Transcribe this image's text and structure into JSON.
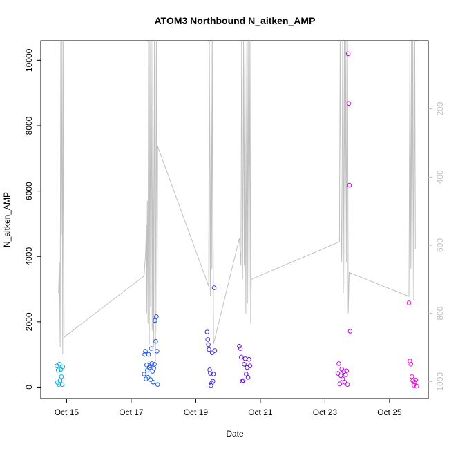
{
  "chart_data": {
    "type": "scatter",
    "title": "ATOM3 Northbound N_aitken_AMP",
    "xlabel": "Date",
    "ylabel": "N_aitken_AMP",
    "x_ticks": [
      "Oct 15",
      "Oct 17",
      "Oct 19",
      "Oct 21",
      "Oct 23",
      "Oct 25"
    ],
    "x_tick_days": [
      15,
      17,
      19,
      21,
      23,
      25
    ],
    "xlim_days": [
      14.2,
      26.2
    ],
    "ylim": [
      -350,
      10600
    ],
    "y_ticks": [
      0,
      2000,
      4000,
      6000,
      8000,
      10000
    ],
    "y2_ticks": [
      200,
      400,
      600,
      800,
      1000
    ],
    "y2lim": [
      0,
      1050
    ],
    "grid": false,
    "colors": {
      "axis": "#000000",
      "secondary_axis": "#bebebe",
      "line": "#c0c0c0"
    },
    "line_series_y2": [
      [
        14.75,
        740
      ],
      [
        14.78,
        650
      ],
      [
        14.8,
        900
      ],
      [
        14.82,
        0
      ],
      [
        14.84,
        570
      ],
      [
        14.86,
        0
      ],
      [
        14.88,
        920
      ],
      [
        14.9,
        0
      ],
      [
        14.92,
        870
      ],
      [
        17.4,
        690
      ],
      [
        17.45,
        620
      ],
      [
        17.47,
        540
      ],
      [
        17.48,
        800
      ],
      [
        17.5,
        470
      ],
      [
        17.52,
        830
      ],
      [
        17.54,
        0
      ],
      [
        17.56,
        890
      ],
      [
        17.58,
        0
      ],
      [
        17.6,
        780
      ],
      [
        17.62,
        0
      ],
      [
        17.65,
        850
      ],
      [
        17.67,
        0
      ],
      [
        17.7,
        900
      ],
      [
        17.72,
        0
      ],
      [
        17.75,
        940
      ],
      [
        17.78,
        0
      ],
      [
        17.8,
        850
      ],
      [
        17.82,
        310
      ],
      [
        19.4,
        720
      ],
      [
        19.42,
        0
      ],
      [
        19.45,
        750
      ],
      [
        19.48,
        0
      ],
      [
        19.5,
        670
      ],
      [
        19.52,
        0
      ],
      [
        19.55,
        890
      ],
      [
        20.35,
        580
      ],
      [
        20.4,
        660
      ],
      [
        20.42,
        0
      ],
      [
        20.45,
        700
      ],
      [
        20.48,
        0
      ],
      [
        20.5,
        660
      ],
      [
        20.52,
        0
      ],
      [
        20.55,
        800
      ],
      [
        20.58,
        0
      ],
      [
        20.6,
        770
      ],
      [
        20.62,
        0
      ],
      [
        20.65,
        810
      ],
      [
        20.68,
        0
      ],
      [
        20.7,
        830
      ],
      [
        20.72,
        700
      ],
      [
        23.45,
        590
      ],
      [
        23.47,
        0
      ],
      [
        23.5,
        520
      ],
      [
        23.52,
        650
      ],
      [
        23.55,
        0
      ],
      [
        23.57,
        740
      ],
      [
        23.6,
        0
      ],
      [
        23.62,
        720
      ],
      [
        23.65,
        0
      ],
      [
        23.67,
        650
      ],
      [
        23.7,
        0
      ],
      [
        23.72,
        800
      ],
      [
        23.75,
        680
      ],
      [
        25.6,
        750
      ],
      [
        25.63,
        0
      ],
      [
        25.66,
        670
      ],
      [
        25.68,
        0
      ],
      [
        25.7,
        750
      ],
      [
        25.72,
        0
      ],
      [
        25.75,
        760
      ],
      [
        25.78,
        0
      ],
      [
        25.8,
        610
      ]
    ],
    "scatter_points": [
      [
        14.7,
        650
      ],
      [
        14.72,
        140
      ],
      [
        14.74,
        520
      ],
      [
        14.76,
        80
      ],
      [
        14.78,
        700
      ],
      [
        14.8,
        200
      ],
      [
        14.82,
        540
      ],
      [
        14.84,
        320
      ],
      [
        14.86,
        80
      ],
      [
        14.88,
        620
      ],
      [
        17.4,
        400
      ],
      [
        17.42,
        1000
      ],
      [
        17.44,
        1100
      ],
      [
        17.46,
        250
      ],
      [
        17.48,
        680
      ],
      [
        17.5,
        520
      ],
      [
        17.52,
        300
      ],
      [
        17.54,
        1000
      ],
      [
        17.56,
        600
      ],
      [
        17.58,
        650
      ],
      [
        17.6,
        230
      ],
      [
        17.62,
        1180
      ],
      [
        17.64,
        720
      ],
      [
        17.66,
        480
      ],
      [
        17.68,
        150
      ],
      [
        17.7,
        580
      ],
      [
        17.72,
        700
      ],
      [
        17.74,
        2040
      ],
      [
        17.76,
        1400
      ],
      [
        17.78,
        2160
      ],
      [
        17.8,
        1100
      ],
      [
        17.82,
        80
      ],
      [
        19.35,
        1690
      ],
      [
        19.37,
        1460
      ],
      [
        19.39,
        1300
      ],
      [
        19.41,
        1150
      ],
      [
        19.43,
        530
      ],
      [
        19.45,
        420
      ],
      [
        19.47,
        50
      ],
      [
        19.49,
        120
      ],
      [
        19.51,
        1050
      ],
      [
        19.53,
        180
      ],
      [
        19.55,
        400
      ],
      [
        19.57,
        3040
      ],
      [
        19.59,
        1120
      ],
      [
        20.35,
        1250
      ],
      [
        20.38,
        1180
      ],
      [
        20.41,
        920
      ],
      [
        20.44,
        180
      ],
      [
        20.47,
        200
      ],
      [
        20.5,
        700
      ],
      [
        20.53,
        870
      ],
      [
        20.56,
        400
      ],
      [
        20.59,
        600
      ],
      [
        20.62,
        300
      ],
      [
        20.65,
        850
      ],
      [
        20.68,
        650
      ],
      [
        23.4,
        420
      ],
      [
        23.43,
        720
      ],
      [
        23.46,
        100
      ],
      [
        23.49,
        350
      ],
      [
        23.52,
        550
      ],
      [
        23.55,
        250
      ],
      [
        23.58,
        480
      ],
      [
        23.61,
        150
      ],
      [
        23.64,
        380
      ],
      [
        23.67,
        500
      ],
      [
        23.7,
        80
      ],
      [
        23.72,
        10200
      ],
      [
        23.74,
        8680
      ],
      [
        23.76,
        6180
      ],
      [
        23.78,
        1710
      ],
      [
        25.6,
        2580
      ],
      [
        25.63,
        800
      ],
      [
        25.66,
        700
      ],
      [
        25.69,
        320
      ],
      [
        25.72,
        200
      ],
      [
        25.75,
        60
      ],
      [
        25.78,
        150
      ],
      [
        25.81,
        220
      ],
      [
        25.84,
        30
      ]
    ]
  }
}
